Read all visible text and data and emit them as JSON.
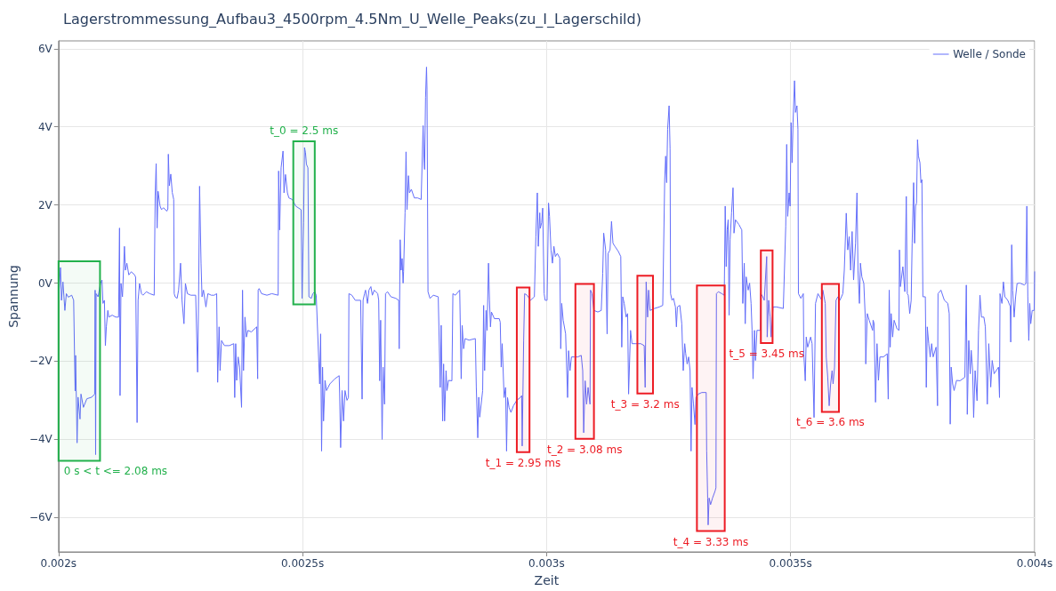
{
  "chart_data": {
    "type": "line",
    "title": "Lagerstrommessung_Aufbau3_4500rpm_4.5Nm_U_Welle_Peaks(zu_I_Lagerschild)",
    "xlabel": "Zeit",
    "ylabel": "Spannung",
    "x": [
      0.002,
      0.002004,
      0.002006,
      0.002009,
      0.002013,
      0.002016,
      0.00202,
      0.002027,
      0.002031,
      0.002034,
      0.002035,
      0.002038,
      0.00204,
      0.002044,
      0.002046,
      0.002051,
      0.002058,
      0.002068,
      0.002074,
      0.002075,
      0.002076,
      0.002077,
      0.002081,
      0.002086,
      0.002089,
      0.002091,
      0.002094,
      0.002096,
      0.002098,
      0.002101,
      0.002103,
      0.00211,
      0.002117,
      0.002123,
      0.002125,
      0.002126,
      0.002128,
      0.002131,
      0.002135,
      0.002137,
      0.00214,
      0.002144,
      0.002149,
      0.002156,
      0.002158,
      0.002161,
      0.002163,
      0.002166,
      0.00217,
      0.002173,
      0.00218,
      0.002187,
      0.002196,
      0.002198,
      0.0022,
      0.002202,
      0.002204,
      0.002208,
      0.002211,
      0.002215,
      0.002222,
      0.002224,
      0.002225,
      0.002227,
      0.00223,
      0.002233,
      0.002236,
      0.002237,
      0.002239,
      0.002243,
      0.002246,
      0.00225,
      0.002253,
      0.002257,
      0.00226,
      0.002264,
      0.002271,
      0.002281,
      0.002285,
      0.002287,
      0.002289,
      0.002292,
      0.002294,
      0.002297,
      0.002302,
      0.002306,
      0.002313,
      0.002319,
      0.002324,
      0.002326,
      0.002329,
      0.002331,
      0.002334,
      0.00234,
      0.00235,
      0.002359,
      0.002361,
      0.002363,
      0.002365,
      0.002368,
      0.002371,
      0.002375,
      0.002377,
      0.002379,
      0.002382,
      0.002385,
      0.002388,
      0.002395,
      0.002406,
      0.002408,
      0.002409,
      0.002411,
      0.002416,
      0.002427,
      0.002437,
      0.00245,
      0.002451,
      0.002453,
      0.002456,
      0.00246,
      0.002462,
      0.002465,
      0.002469,
      0.002472,
      0.002479,
      0.002486,
      0.002497,
      0.002499,
      0.002502,
      0.002504,
      0.002506,
      0.002508,
      0.002511,
      0.002513,
      0.002518,
      0.002521,
      0.002525,
      0.002528,
      0.002535,
      0.002537,
      0.002539,
      0.002541,
      0.002543,
      0.002546,
      0.002549,
      0.002556,
      0.002566,
      0.002575,
      0.002576,
      0.002578,
      0.002581,
      0.002584,
      0.002587,
      0.002591,
      0.002594,
      0.002595,
      0.002601,
      0.002608,
      0.002619,
      0.002622,
      0.002624,
      0.002627,
      0.002629,
      0.002633,
      0.002636,
      0.00264,
      0.002643,
      0.002647,
      0.002654,
      0.002656,
      0.002658,
      0.00266,
      0.002663,
      0.002665,
      0.002668,
      0.00267,
      0.002674,
      0.002681,
      0.002691,
      0.002697,
      0.002698,
      0.0027,
      0.002702,
      0.002704,
      0.002706,
      0.002707,
      0.00271,
      0.002712,
      0.002714,
      0.002717,
      0.002719,
      0.002723,
      0.002729,
      0.002736,
      0.002743,
      0.002747,
      0.002749,
      0.00275,
      0.002752,
      0.002754,
      0.002755,
      0.002757,
      0.002761,
      0.002768,
      0.002778,
      0.002782,
      0.002784,
      0.002787,
      0.002789,
      0.002791,
      0.002794,
      0.002796,
      0.002799,
      0.002806,
      0.002808,
      0.002813,
      0.002822,
      0.002825,
      0.002827,
      0.00283,
      0.002833,
      0.002841,
      0.002854,
      0.002856,
      0.002859,
      0.002861,
      0.002863,
      0.002869,
      0.002871,
      0.002873,
      0.002876,
      0.002878,
      0.002881,
      0.002883,
      0.002885,
      0.002887,
      0.002893,
      0.002903,
      0.002905,
      0.002907,
      0.002909,
      0.002913,
      0.002916,
      0.002918,
      0.00292,
      0.002923,
      0.002927,
      0.002932,
      0.002939,
      0.002946,
      0.002949,
      0.00295,
      0.002953,
      0.002955,
      0.00296,
      0.002967,
      0.002975,
      0.002978,
      0.002981,
      0.002983,
      0.002986,
      0.002987,
      0.00299,
      0.002992,
      0.002995,
      0.002997,
      0.003001,
      0.003004,
      0.003006,
      0.003009,
      0.003012,
      0.003015,
      0.003018,
      0.003022,
      0.003027,
      0.003029,
      0.003031,
      0.003034,
      0.003039,
      0.003043,
      0.003045,
      0.003048,
      0.003051,
      0.003057,
      0.003064,
      0.003071,
      0.003074,
      0.003076,
      0.003079,
      0.003082,
      0.003085,
      0.003089,
      0.00309,
      0.003093,
      0.003097,
      0.003105,
      0.003112,
      0.003115,
      0.003117,
      0.003121,
      0.003124,
      0.003126,
      0.00313,
      0.003133,
      0.003136,
      0.00314,
      0.003147,
      0.003152,
      0.003154,
      0.003156,
      0.003159,
      0.003163,
      0.003166,
      0.003168,
      0.003172,
      0.003175,
      0.003182,
      0.003193,
      0.0032,
      0.003202,
      0.003204,
      0.003207,
      0.003209,
      0.003212,
      0.003221,
      0.003231,
      0.003238,
      0.003242,
      0.003244,
      0.003246,
      0.003248,
      0.003251,
      0.003253,
      0.003254,
      0.003257,
      0.00326,
      0.003264,
      0.003266,
      0.003268,
      0.003273,
      0.003277,
      0.00328,
      0.003283,
      0.003285,
      0.003288,
      0.003291,
      0.003294,
      0.003296,
      0.003298,
      0.003301,
      0.003304,
      0.003306,
      0.003311,
      0.003318,
      0.003327,
      0.003328,
      0.00333,
      0.003331,
      0.003333,
      0.003336,
      0.00334,
      0.003345,
      0.003347,
      0.003348,
      0.003352,
      0.003359,
      0.003364,
      0.003366,
      0.003368,
      0.00337,
      0.003372,
      0.003374,
      0.003376,
      0.003379,
      0.003382,
      0.003384,
      0.003387,
      0.003394,
      0.0034,
      0.003402,
      0.003405,
      0.003407,
      0.003409,
      0.003413,
      0.003416,
      0.003419,
      0.003421,
      0.003423,
      0.003426,
      0.003428,
      0.003431,
      0.003438,
      0.003439,
      0.003443,
      0.003446,
      0.003451,
      0.003452,
      0.003455,
      0.003458,
      0.00346,
      0.003464,
      0.003471,
      0.003485,
      0.00349,
      0.003492,
      0.003494,
      0.003497,
      0.003499,
      0.003501,
      0.003503,
      0.003505,
      0.003508,
      0.00351,
      0.003513,
      0.003515,
      0.003516,
      0.003521,
      0.003526,
      0.003527,
      0.00353,
      0.003532,
      0.003535,
      0.003541,
      0.003544,
      0.003548,
      0.003551,
      0.003556,
      0.003564,
      0.003566,
      0.003571,
      0.003573,
      0.003576,
      0.003579,
      0.003582,
      0.003585,
      0.003587,
      0.00359,
      0.003593,
      0.003597,
      0.003601,
      0.003607,
      0.00361,
      0.003614,
      0.003617,
      0.00362,
      0.003623,
      0.003626,
      0.003629,
      0.003633,
      0.003636,
      0.003638,
      0.003641,
      0.003643,
      0.003646,
      0.00365,
      0.003653,
      0.003654,
      0.003657,
      0.003661,
      0.003668,
      0.003669,
      0.003671,
      0.003674,
      0.003677,
      0.00368,
      0.003683,
      0.00369,
      0.003698,
      0.0037,
      0.003702,
      0.003704,
      0.003706,
      0.003709,
      0.003712,
      0.003718,
      0.003722,
      0.003723,
      0.003725,
      0.00373,
      0.003734,
      0.003737,
      0.003739,
      0.003741,
      0.003744,
      0.003747,
      0.003749,
      0.003752,
      0.003754,
      0.003756,
      0.003758,
      0.00376,
      0.003762,
      0.003765,
      0.003767,
      0.003769,
      0.003771,
      0.003776,
      0.003778,
      0.00378,
      0.003783,
      0.003786,
      0.003789,
      0.003792,
      0.003798,
      0.003801,
      0.003802,
      0.003808,
      0.003815,
      0.003822,
      0.003825,
      0.003827,
      0.003829,
      0.003832,
      0.003835,
      0.00384,
      0.003847,
      0.003857,
      0.00386,
      0.003862,
      0.003865,
      0.003868,
      0.00387,
      0.003873,
      0.003875,
      0.003878,
      0.003882,
      0.003885,
      0.003888,
      0.003891,
      0.003896,
      0.003899,
      0.003903,
      0.003906,
      0.00391,
      0.003913,
      0.003917,
      0.003926,
      0.003928,
      0.003929,
      0.003933,
      0.003936,
      0.003939,
      0.003945,
      0.00395,
      0.003951,
      0.003953,
      0.003955,
      0.003958,
      0.003961,
      0.003964,
      0.00397,
      0.003979,
      0.003982,
      0.003984,
      0.003986,
      0.003988,
      0.00399,
      0.003992,
      0.003995,
      0.003999,
      0.004
    ],
    "series": [
      {
        "name": "Welle / Sonde",
        "color": "#636efa",
        "values": [
          -0.45,
          0.4,
          -0.44,
          0.03,
          -0.7,
          -0.27,
          -0.36,
          -0.31,
          -0.44,
          -2.76,
          -1.85,
          -4.09,
          -2.92,
          -3.48,
          -2.84,
          -3.18,
          -2.96,
          -2.92,
          -2.84,
          -0.18,
          -4.39,
          -0.27,
          -0.35,
          -0.01,
          0.08,
          -0.52,
          -0.44,
          -1.6,
          -1.12,
          -0.7,
          -0.87,
          -0.82,
          -0.87,
          -0.87,
          1.41,
          -2.88,
          -0.01,
          -0.35,
          0.94,
          0.33,
          0.51,
          0.21,
          0.29,
          0.21,
          0.15,
          -3.57,
          -0.44,
          -0.01,
          -0.27,
          -0.31,
          -0.22,
          -0.27,
          -0.31,
          2.22,
          3.06,
          1.41,
          2.35,
          1.97,
          1.88,
          1.93,
          1.84,
          1.9,
          3.3,
          2.49,
          2.79,
          2.32,
          2.14,
          -0.27,
          -0.35,
          -0.39,
          -0.18,
          0.51,
          -0.44,
          -1.04,
          -0.01,
          -0.27,
          -0.31,
          -0.31,
          -2.28,
          -0.35,
          2.48,
          0.51,
          -0.35,
          -0.18,
          -0.61,
          -0.27,
          -0.31,
          -0.31,
          -0.27,
          -2.54,
          -1.12,
          -2.24,
          -1.47,
          -1.6,
          -1.6,
          -1.55,
          -2.93,
          -1.55,
          -2.49,
          -1.89,
          -2.15,
          -3.18,
          -0.18,
          -2.24,
          -0.87,
          -1.38,
          -1.21,
          -1.25,
          -1.12,
          -2.45,
          -0.18,
          -0.14,
          -0.27,
          -0.31,
          -0.27,
          -0.31,
          2.87,
          1.36,
          2.95,
          3.38,
          2.31,
          2.78,
          2.31,
          2.18,
          2.14,
          1.97,
          1.88,
          -0.39,
          1.54,
          3.47,
          3.34,
          3.04,
          2.95,
          -0.35,
          -0.39,
          -0.27,
          -0.22,
          -0.31,
          -2.58,
          -1.3,
          -4.3,
          -2.15,
          -3.53,
          -2.49,
          -2.75,
          -2.58,
          -2.45,
          -2.37,
          -2.83,
          -4.21,
          -2.75,
          -3.53,
          -2.75,
          -3.0,
          -2.93,
          -0.27,
          -0.31,
          -0.44,
          -0.44,
          -2.97,
          -0.44,
          -0.27,
          -0.18,
          -0.52,
          -0.18,
          -0.09,
          -0.31,
          -0.18,
          -0.27,
          -0.44,
          -2.5,
          -0.95,
          -4.0,
          -2.15,
          -3.1,
          -0.27,
          -0.22,
          -0.35,
          -0.39,
          -0.44,
          -1.68,
          1.11,
          0.33,
          0.63,
          0.0,
          0.3,
          1.8,
          3.36,
          1.88,
          2.75,
          2.31,
          2.4,
          2.18,
          2.18,
          2.14,
          4.03,
          3.08,
          2.91,
          4.76,
          5.53,
          4.97,
          -0.22,
          -0.39,
          -0.31,
          -0.35,
          -2.67,
          -1.08,
          -3.53,
          -2.07,
          -3.53,
          -2.24,
          -2.75,
          -2.49,
          -2.5,
          -0.27,
          -0.31,
          -0.18,
          -2.45,
          -1.08,
          -1.68,
          -1.42,
          -1.46,
          -1.42,
          -2.67,
          -3.96,
          -2.92,
          -3.43,
          -2.75,
          -0.57,
          -2.24,
          -0.7,
          -1.21,
          0.51,
          -0.44,
          -1.12,
          -0.74,
          -0.91,
          -0.91,
          -1.0,
          -2.15,
          -1.55,
          -2.93,
          -2.67,
          -4.3,
          -2.93,
          -3.18,
          -3.31,
          -3.14,
          -3.0,
          -2.93,
          -2.88,
          -4.17,
          -1.47,
          -0.27,
          -0.31,
          -0.44,
          -0.35,
          1.19,
          2.31,
          0.94,
          1.8,
          1.4,
          1.55,
          1.92,
          -0.27,
          -0.44,
          -0.44,
          2.05,
          1.71,
          0.85,
          0.51,
          0.94,
          0.68,
          0.76,
          0.64,
          -1.68,
          -0.52,
          -0.95,
          -1.3,
          -2.93,
          -1.73,
          -2.24,
          -1.89,
          -1.89,
          -1.89,
          -1.85,
          -2.24,
          -3.83,
          -2.5,
          -3.1,
          -2.67,
          -3.1,
          -0.18,
          -0.27,
          -0.7,
          -0.74,
          -0.7,
          0.25,
          1.28,
          0.85,
          -1.3,
          0.76,
          0.85,
          1.58,
          1.02,
          0.94,
          0.81,
          0.68,
          -1.64,
          -0.35,
          -0.52,
          -0.87,
          -0.78,
          -2.84,
          -1.21,
          -1.55,
          -1.55,
          -1.55,
          -1.6,
          -2.67,
          0.03,
          -0.87,
          -0.18,
          -0.7,
          -0.65,
          -0.61,
          -0.57,
          2.65,
          3.25,
          2.57,
          3.94,
          4.54,
          3.43,
          -0.27,
          -0.44,
          -0.39,
          -0.61,
          -1.12,
          -0.61,
          -0.57,
          -1.04,
          -2.24,
          -1.55,
          -1.8,
          -2.07,
          -1.89,
          -2.24,
          -4.3,
          -2.67,
          -3.1,
          -3.62,
          -2.93,
          -2.84,
          -2.8,
          -2.8,
          -4.3,
          -5.5,
          -6.19,
          -5.5,
          -5.67,
          -5.5,
          -5.33,
          -5.24,
          -0.27,
          -0.22,
          -0.27,
          -0.31,
          1.97,
          0.42,
          1.36,
          1.62,
          -0.82,
          1.11,
          1.8,
          2.44,
          1.28,
          1.62,
          1.5,
          1.36,
          -0.52,
          0.51,
          -1.04,
          0.16,
          -0.18,
          0.0,
          -0.52,
          -1.21,
          -2.45,
          -1.21,
          -1.98,
          -1.21,
          -1.21,
          -0.27,
          -0.35,
          -0.44,
          0.68,
          -1.38,
          -0.44,
          -0.87,
          -1.38,
          -0.61,
          -0.61,
          -0.65,
          1.45,
          3.55,
          1.71,
          2.31,
          1.97,
          4.11,
          3.08,
          4.11,
          5.18,
          4.37,
          4.54,
          3.94,
          -0.27,
          -0.39,
          -0.27,
          -1.81,
          -2.5,
          -1.38,
          -1.64,
          -1.38,
          -1.55,
          -3.44,
          -0.52,
          -0.27,
          -0.44,
          -0.18,
          -0.52,
          -1.9,
          -2.4,
          -3.14,
          -2.58,
          -2.24,
          -2.58,
          -2.15,
          -0.44,
          -0.35,
          -0.44,
          -0.27,
          0.33,
          1.79,
          0.85,
          1.19,
          0.33,
          1.32,
          0.08,
          1.02,
          2.31,
          0.33,
          -0.52,
          0.51,
          0.16,
          -0.01,
          -0.9,
          -2.07,
          -0.78,
          -0.95,
          -1.21,
          -0.95,
          -1.03,
          -3.05,
          -1.55,
          -2.49,
          -1.89,
          -1.89,
          -1.81,
          -2.97,
          -0.18,
          -1.64,
          -0.78,
          -1.38,
          -0.95,
          -1.17,
          -1.21,
          0.85,
          -0.09,
          0.42,
          -0.22,
          2.22,
          -0.27,
          -0.31,
          -0.78,
          -0.44,
          1.02,
          2.57,
          1.02,
          1.97,
          2.05,
          3.67,
          3.25,
          3.08,
          2.57,
          2.65,
          -0.35,
          -0.35,
          -2.67,
          -1.12,
          -1.55,
          -1.89,
          -1.55,
          -1.89,
          -1.64,
          -3.14,
          -0.27,
          -0.18,
          -0.44,
          -0.52,
          -0.78,
          -3.61,
          -2.15,
          -2.58,
          -2.75,
          -2.49,
          -2.5,
          -2.41,
          -0.05,
          -3.36,
          -1.47,
          -2.32,
          -1.72,
          -2.24,
          -3.44,
          -2.24,
          -3.01,
          -1.21,
          -0.31,
          -0.87,
          -0.87,
          -1.12,
          -3.1,
          -1.55,
          -2.66,
          -1.98,
          -2.32,
          -2.15,
          -2.93,
          -0.27,
          -0.52,
          0.03,
          -0.35,
          -0.44,
          -0.6,
          -1.51,
          0.98,
          -0.18,
          -0.87,
          -0.35,
          -0.01,
          0.0,
          -0.05,
          -0.01,
          1.97,
          -0.35,
          -1.47,
          -0.52,
          -1.04,
          -0.7,
          -0.7,
          0.29
        ]
      }
    ],
    "xlim": [
      0.002,
      0.004
    ],
    "xticks": [
      {
        "value": 0.002,
        "label": "0.002s"
      },
      {
        "value": 0.0025,
        "label": "0.0025s"
      },
      {
        "value": 0.003,
        "label": "0.003s"
      },
      {
        "value": 0.0035,
        "label": "0.0035s"
      },
      {
        "value": 0.004,
        "label": "0.004s"
      }
    ],
    "ylim": [
      -6.88,
      6.2
    ],
    "yticks": [
      {
        "value": -6,
        "label": "−6V"
      },
      {
        "value": -4,
        "label": "−4V"
      },
      {
        "value": -2,
        "label": "−2V"
      },
      {
        "value": 0,
        "label": "0V"
      },
      {
        "value": 2,
        "label": "2V"
      },
      {
        "value": 4,
        "label": "4V"
      },
      {
        "value": 6,
        "label": "6V"
      }
    ],
    "bands": [
      {
        "axis": "x",
        "from": 0.002,
        "to": 0.002085,
        "label": "0 s < t <= 2.08 ms",
        "color": "#22b14c"
      },
      {
        "axis": "x",
        "from": 0.002481,
        "to": 0.002525,
        "label": "t_0 = 2.5 ms",
        "color": "#22b14c"
      },
      {
        "axis": "x",
        "from": 0.002939,
        "to": 0.002965,
        "label": "t_1 = 2.95 ms",
        "color": "#ed1c24"
      },
      {
        "axis": "x",
        "from": 0.003059,
        "to": 0.003097,
        "label": "t_2 = 3.08 ms",
        "color": "#ed1c24"
      },
      {
        "axis": "x",
        "from": 0.003186,
        "to": 0.003218,
        "label": "t_3 = 3.2 ms",
        "color": "#ed1c24"
      },
      {
        "axis": "x",
        "from": 0.003308,
        "to": 0.003365,
        "label": "t_4 = 3.33 ms",
        "color": "#ed1c24"
      },
      {
        "axis": "x",
        "from": 0.003439,
        "to": 0.003463,
        "label": "t_5 = 3.45 ms",
        "color": "#ed1c24"
      },
      {
        "axis": "x",
        "from": 0.003564,
        "to": 0.003599,
        "label": "t_6 = 3.6 ms",
        "color": "#ed1c24"
      }
    ],
    "grid": true,
    "legend": "top right",
    "marker": "none"
  }
}
